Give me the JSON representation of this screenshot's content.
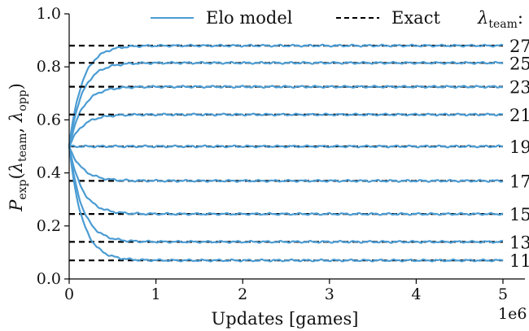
{
  "chart_data": {
    "type": "line",
    "xlabel": "Updates [games]",
    "x_scale_label": "1e6",
    "ylabel": {
      "main": "P",
      "sub": "exp",
      "open": "(",
      "lambda1": "λ",
      "lambda1_sub": "team",
      "comma": ", ",
      "lambda2": "λ",
      "lambda2_sub": "opp",
      "close": ")"
    },
    "xlim": [
      0,
      5.3
    ],
    "ylim": [
      0,
      1.0
    ],
    "xticks": [
      "0",
      "1",
      "2",
      "3",
      "4",
      "5"
    ],
    "xtick_values": [
      0,
      1,
      2,
      3,
      4,
      5
    ],
    "yticks": [
      "0.0",
      "0.2",
      "0.4",
      "0.6",
      "0.8",
      "1.0"
    ],
    "ytick_values": [
      0.0,
      0.2,
      0.4,
      0.6,
      0.8,
      1.0
    ],
    "legend": {
      "elo_label": "Elo model",
      "exact_label": "Exact",
      "lambda_symbol": "λ",
      "lambda_sub": "team",
      "lambda_colon": ":",
      "placement": "top"
    },
    "colors": {
      "elo": "#4b9cd3",
      "exact": "#000000"
    },
    "start_value": 0.5,
    "x_end": 5.0,
    "series": [
      {
        "name": "27",
        "exact": 0.88
      },
      {
        "name": "25",
        "exact": 0.815
      },
      {
        "name": "23",
        "exact": 0.725
      },
      {
        "name": "21",
        "exact": 0.62
      },
      {
        "name": "19",
        "exact": 0.5
      },
      {
        "name": "17",
        "exact": 0.37
      },
      {
        "name": "15",
        "exact": 0.245
      },
      {
        "name": "13",
        "exact": 0.14
      },
      {
        "name": "11",
        "exact": 0.07
      }
    ],
    "convergence_scale": 0.15,
    "grid": false
  }
}
